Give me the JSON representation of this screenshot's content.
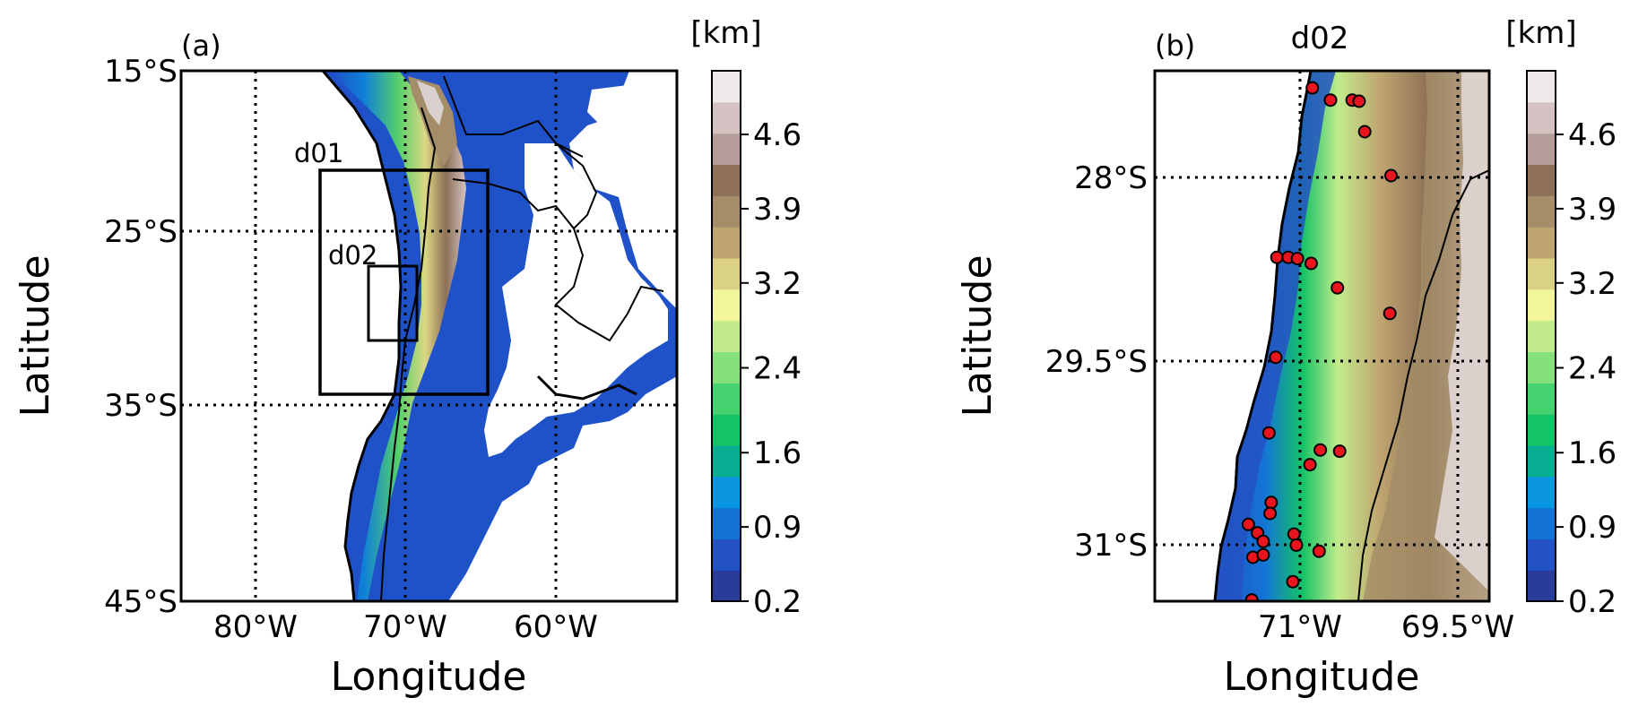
{
  "panel_a": {
    "tag": "(a)",
    "xlabel": "Longitude",
    "ylabel": "Latitude",
    "lon_ticks": [
      "80°W",
      "70°W",
      "60°W"
    ],
    "lat_ticks": [
      "15°S",
      "25°S",
      "35°S",
      "45°S"
    ],
    "domain_labels": [
      "d01",
      "d02"
    ],
    "lon_range": [
      -85,
      -52
    ],
    "lat_range": [
      -45,
      -15
    ],
    "d01_box": {
      "lon": [
        -75.6,
        -64.4
      ],
      "lat": [
        -34.5,
        -21.3
      ]
    },
    "d02_box": {
      "lon": [
        -72.3,
        -69.0
      ],
      "lat": [
        -31.5,
        -27.2
      ]
    },
    "colorbar": {
      "unit": "[km]",
      "tick_labels": [
        "0.2",
        "0.9",
        "1.6",
        "2.4",
        "3.2",
        "3.9",
        "4.6"
      ],
      "range_km": [
        0.2,
        5.2
      ],
      "levels": 17
    }
  },
  "panel_b": {
    "tag": "(b)",
    "domain_title": "d02",
    "xlabel": "Longitude",
    "ylabel": "Latitude",
    "lon_ticks": [
      "71°W",
      "69.5°W"
    ],
    "lat_ticks": [
      "28°S",
      "29.5°S",
      "31°S"
    ],
    "lon_range": [
      -72.2,
      -69.27
    ],
    "lat_range": [
      -31.45,
      -27.1
    ],
    "colorbar": {
      "unit": "[km]",
      "tick_labels": [
        "0.2",
        "0.9",
        "1.6",
        "2.4",
        "3.2",
        "3.9",
        "4.6"
      ],
      "range_km": [
        0.2,
        5.2
      ],
      "levels": 17
    },
    "stations": [
      {
        "lon": -70.82,
        "lat": -27.24
      },
      {
        "lon": -70.66,
        "lat": -27.34
      },
      {
        "lon": -70.47,
        "lat": -27.34
      },
      {
        "lon": -70.41,
        "lat": -27.35
      },
      {
        "lon": -70.36,
        "lat": -27.6
      },
      {
        "lon": -70.13,
        "lat": -27.96
      },
      {
        "lon": -71.13,
        "lat": -28.63
      },
      {
        "lon": -71.03,
        "lat": -28.63
      },
      {
        "lon": -70.95,
        "lat": -28.64
      },
      {
        "lon": -70.83,
        "lat": -28.68
      },
      {
        "lon": -70.6,
        "lat": -28.88
      },
      {
        "lon": -70.14,
        "lat": -29.09
      },
      {
        "lon": -71.14,
        "lat": -29.45
      },
      {
        "lon": -71.2,
        "lat": -30.07
      },
      {
        "lon": -70.75,
        "lat": -30.21
      },
      {
        "lon": -70.58,
        "lat": -30.22
      },
      {
        "lon": -70.84,
        "lat": -30.33
      },
      {
        "lon": -71.18,
        "lat": -30.64
      },
      {
        "lon": -71.19,
        "lat": -30.73
      },
      {
        "lon": -71.38,
        "lat": -30.82
      },
      {
        "lon": -71.3,
        "lat": -30.89
      },
      {
        "lon": -70.98,
        "lat": -30.9
      },
      {
        "lon": -71.25,
        "lat": -30.96
      },
      {
        "lon": -70.96,
        "lat": -30.99
      },
      {
        "lon": -70.76,
        "lat": -31.04
      },
      {
        "lon": -71.34,
        "lat": -31.09
      },
      {
        "lon": -71.25,
        "lat": -31.07
      },
      {
        "lon": -70.99,
        "lat": -31.29
      },
      {
        "lon": -71.35,
        "lat": -31.44
      }
    ]
  },
  "colors": {
    "terrain_scale": [
      "#2a3c9a",
      "#2352c4",
      "#1474d6",
      "#0995e0",
      "#08ad92",
      "#15c266",
      "#46d26f",
      "#86e07c",
      "#c2ec8c",
      "#f3f59a",
      "#dbd182",
      "#bfa670",
      "#a48d68",
      "#8d7056",
      "#b49d98",
      "#d4c3c2",
      "#efe9e9"
    ],
    "station_fill": "#e8141e",
    "station_edge": "#000000"
  }
}
